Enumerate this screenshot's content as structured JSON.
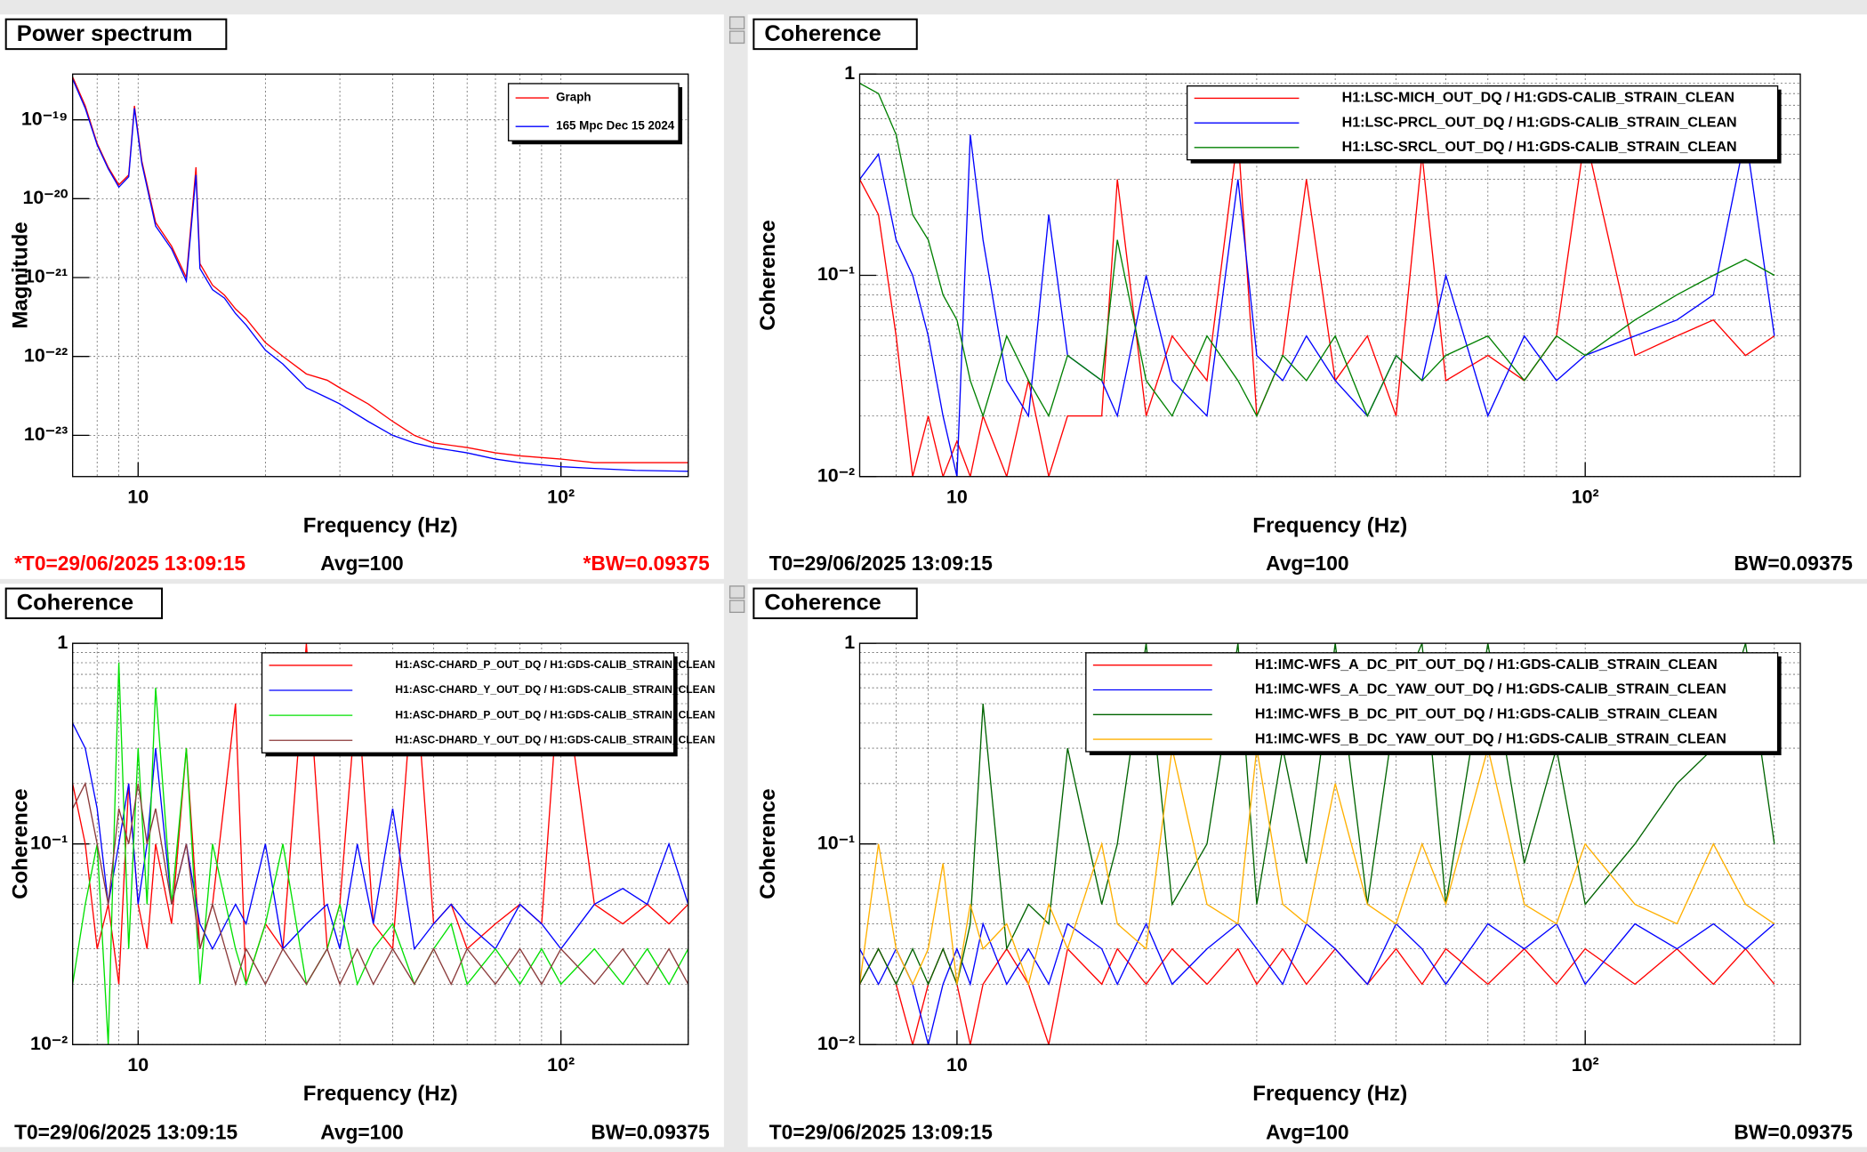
{
  "chart_data": [
    {
      "type": "line",
      "title": "Power spectrum",
      "xlabel": "Frequency (Hz)",
      "ylabel": "Magnitude",
      "log_x": true,
      "log_y": true,
      "grid": true,
      "xlim": [
        7,
        200
      ],
      "ylim": [
        3e-24,
        3.8e-19
      ],
      "xticks": [
        10,
        {
          "value": 100,
          "label": "10²"
        }
      ],
      "xminorticks": [
        7,
        8,
        9,
        20,
        30,
        40,
        50,
        60,
        70,
        80,
        90,
        200
      ],
      "yticks": [
        {
          "value": 1e-23,
          "label": "10⁻²³"
        },
        {
          "value": 1e-22,
          "label": "10⁻²²"
        },
        {
          "value": 1e-21,
          "label": "10⁻²¹"
        },
        {
          "value": 1e-20,
          "label": "10⁻²⁰"
        },
        {
          "value": 1e-19,
          "label": "10⁻¹⁹"
        }
      ],
      "yminorticks": [],
      "x": [
        7,
        7.5,
        8,
        8.5,
        9,
        9.5,
        9.8,
        10.2,
        11,
        12,
        13,
        13.7,
        14,
        15,
        16,
        17,
        18,
        20,
        22,
        25,
        28,
        30,
        35,
        40,
        45,
        50,
        60,
        70,
        80,
        100,
        120,
        150,
        200
      ],
      "series": [
        {
          "name": "Graph",
          "color": "#ff0000",
          "values": [
            3.5e-19,
            1.5e-19,
            5e-20,
            2.5e-20,
            1.5e-20,
            2e-20,
            1.5e-19,
            3e-20,
            5e-21,
            2.5e-21,
            1e-21,
            2.5e-20,
            1.5e-21,
            8e-22,
            6e-22,
            4e-22,
            3e-22,
            1.5e-22,
            1e-22,
            6e-23,
            5e-23,
            4e-23,
            2.5e-23,
            1.5e-23,
            1e-23,
            8e-24,
            7e-24,
            6e-24,
            5.5e-24,
            5e-24,
            4.5e-24,
            4.5e-24,
            4.5e-24
          ]
        },
        {
          "name": "165 Mpc Dec 15 2024",
          "color": "#0000ff",
          "values": [
            3.3e-19,
            1.4e-19,
            4.8e-20,
            2.4e-20,
            1.4e-20,
            1.9e-20,
            1.4e-19,
            2.8e-20,
            4.5e-21,
            2.3e-21,
            9e-22,
            2e-20,
            1.3e-21,
            7e-22,
            5.5e-22,
            3.5e-22,
            2.5e-22,
            1.2e-22,
            8e-23,
            4e-23,
            3e-23,
            2.5e-23,
            1.5e-23,
            1e-23,
            8e-24,
            7e-24,
            6e-24,
            5e-24,
            4.5e-24,
            4e-24,
            3.8e-24,
            3.6e-24,
            3.5e-24
          ]
        }
      ],
      "footer": {
        "t0": "*T0=29/06/2025 13:09:15",
        "avg": "Avg=100",
        "bw": "*BW=0.09375"
      },
      "footer_color": "#ff0000"
    },
    {
      "type": "line",
      "title": "Coherence",
      "xlabel": "Frequency (Hz)",
      "ylabel": "Coherence",
      "log_x": true,
      "log_y": true,
      "grid": true,
      "xlim": [
        7,
        220
      ],
      "ylim": [
        0.01,
        1
      ],
      "xticks": [
        10,
        {
          "value": 100,
          "label": "10²"
        }
      ],
      "xminorticks": [
        7,
        8,
        9,
        20,
        30,
        40,
        50,
        60,
        70,
        80,
        90,
        200
      ],
      "yticks": [
        {
          "value": 0.01,
          "label": "10⁻²"
        },
        {
          "value": 0.1,
          "label": "10⁻¹"
        },
        1
      ],
      "yminorticks": [
        0.02,
        0.03,
        0.04,
        0.05,
        0.06,
        0.07,
        0.08,
        0.09,
        0.2,
        0.3,
        0.4,
        0.5,
        0.6,
        0.7,
        0.8,
        0.9
      ],
      "x": [
        7,
        7.5,
        8,
        8.5,
        9,
        9.5,
        10,
        10.5,
        11,
        12,
        13,
        14,
        15,
        17,
        18,
        20,
        22,
        25,
        28,
        30,
        33,
        36,
        40,
        45,
        50,
        55,
        60,
        70,
        80,
        90,
        100,
        120,
        140,
        160,
        180,
        200
      ],
      "series": [
        {
          "name": "H1:LSC-MICH_OUT_DQ / H1:GDS-CALIB_STRAIN_CLEAN",
          "color": "#ff0000",
          "values": [
            0.3,
            0.2,
            0.05,
            0.01,
            0.02,
            0.01,
            0.015,
            0.01,
            0.02,
            0.01,
            0.03,
            0.01,
            0.02,
            0.02,
            0.3,
            0.02,
            0.05,
            0.03,
            0.5,
            0.02,
            0.04,
            0.3,
            0.03,
            0.05,
            0.02,
            0.4,
            0.03,
            0.04,
            0.03,
            0.05,
            0.5,
            0.04,
            0.05,
            0.06,
            0.04,
            0.05
          ]
        },
        {
          "name": "H1:LSC-PRCL_OUT_DQ / H1:GDS-CALIB_STRAIN_CLEAN",
          "color": "#0000ff",
          "values": [
            0.3,
            0.4,
            0.15,
            0.1,
            0.05,
            0.02,
            0.01,
            0.5,
            0.15,
            0.03,
            0.02,
            0.2,
            0.04,
            0.03,
            0.02,
            0.1,
            0.03,
            0.02,
            0.3,
            0.04,
            0.03,
            0.05,
            0.03,
            0.02,
            0.04,
            0.03,
            0.1,
            0.02,
            0.05,
            0.03,
            0.04,
            0.05,
            0.06,
            0.08,
            0.5,
            0.05
          ]
        },
        {
          "name": "H1:LSC-SRCL_OUT_DQ / H1:GDS-CALIB_STRAIN_CLEAN",
          "color": "#008000",
          "values": [
            0.9,
            0.8,
            0.5,
            0.2,
            0.15,
            0.08,
            0.06,
            0.03,
            0.02,
            0.05,
            0.03,
            0.02,
            0.04,
            0.03,
            0.15,
            0.03,
            0.02,
            0.05,
            0.03,
            0.02,
            0.04,
            0.03,
            0.05,
            0.02,
            0.04,
            0.03,
            0.04,
            0.05,
            0.03,
            0.05,
            0.04,
            0.06,
            0.08,
            0.1,
            0.12,
            0.1
          ]
        }
      ],
      "footer": {
        "t0": "T0=29/06/2025 13:09:15",
        "avg": "Avg=100",
        "bw": "BW=0.09375"
      },
      "footer_color": "#000000"
    },
    {
      "type": "line",
      "title": "Coherence",
      "xlabel": "Frequency (Hz)",
      "ylabel": "Coherence",
      "log_x": true,
      "log_y": true,
      "grid": true,
      "xlim": [
        7,
        200
      ],
      "ylim": [
        0.01,
        1
      ],
      "xticks": [
        10,
        {
          "value": 100,
          "label": "10²"
        }
      ],
      "xminorticks": [
        7,
        8,
        9,
        20,
        30,
        40,
        50,
        60,
        70,
        80,
        90,
        200
      ],
      "yticks": [
        {
          "value": 0.01,
          "label": "10⁻²"
        },
        {
          "value": 0.1,
          "label": "10⁻¹"
        },
        1
      ],
      "yminorticks": [
        0.02,
        0.03,
        0.04,
        0.05,
        0.06,
        0.07,
        0.08,
        0.09,
        0.2,
        0.3,
        0.4,
        0.5,
        0.6,
        0.7,
        0.8,
        0.9
      ],
      "x": [
        7,
        7.5,
        8,
        8.5,
        9,
        9.5,
        10,
        10.5,
        11,
        12,
        13,
        14,
        15,
        17,
        18,
        20,
        22,
        25,
        28,
        30,
        33,
        36,
        40,
        45,
        50,
        55,
        60,
        70,
        80,
        90,
        100,
        120,
        140,
        160,
        180,
        200
      ],
      "series": [
        {
          "name": "H1:ASC-CHARD_P_OUT_DQ / H1:GDS-CALIB_STRAIN_CLEAN",
          "color": "#ff0000",
          "values": [
            0.2,
            0.1,
            0.03,
            0.05,
            0.02,
            0.2,
            0.05,
            0.03,
            0.1,
            0.04,
            0.3,
            0.03,
            0.05,
            0.5,
            0.02,
            0.04,
            0.03,
            1,
            0.03,
            0.05,
            0.6,
            0.04,
            0.03,
            0.8,
            0.04,
            0.05,
            0.03,
            0.04,
            0.05,
            0.04,
            0.9,
            0.05,
            0.04,
            0.05,
            0.04,
            0.05
          ]
        },
        {
          "name": "H1:ASC-CHARD_Y_OUT_DQ / H1:GDS-CALIB_STRAIN_CLEAN",
          "color": "#0000ff",
          "values": [
            0.4,
            0.3,
            0.15,
            0.05,
            0.1,
            0.2,
            0.05,
            0.1,
            0.3,
            0.05,
            0.1,
            0.04,
            0.03,
            0.05,
            0.04,
            0.1,
            0.03,
            0.04,
            0.05,
            0.03,
            0.1,
            0.04,
            0.15,
            0.03,
            0.04,
            0.05,
            0.04,
            0.03,
            0.05,
            0.04,
            0.03,
            0.05,
            0.06,
            0.05,
            0.1,
            0.05
          ]
        },
        {
          "name": "H1:ASC-DHARD_P_OUT_DQ / H1:GDS-CALIB_STRAIN_CLEAN",
          "color": "#00e000",
          "values": [
            0.02,
            0.05,
            0.1,
            0.01,
            0.8,
            0.03,
            0.3,
            0.05,
            0.6,
            0.05,
            0.3,
            0.02,
            0.1,
            0.03,
            0.02,
            0.04,
            0.1,
            0.02,
            0.03,
            0.05,
            0.02,
            0.03,
            0.04,
            0.02,
            0.03,
            0.04,
            0.02,
            0.03,
            0.02,
            0.03,
            0.02,
            0.03,
            0.02,
            0.03,
            0.02,
            0.03
          ]
        },
        {
          "name": "H1:ASC-DHARD_Y_OUT_DQ / H1:GDS-CALIB_STRAIN_CLEAN",
          "color": "#8b3a3a",
          "values": [
            0.15,
            0.2,
            0.1,
            0.05,
            0.15,
            0.1,
            0.2,
            0.1,
            0.15,
            0.05,
            0.1,
            0.03,
            0.05,
            0.02,
            0.03,
            0.02,
            0.03,
            0.02,
            0.03,
            0.02,
            0.03,
            0.02,
            0.03,
            0.02,
            0.03,
            0.02,
            0.03,
            0.02,
            0.03,
            0.02,
            0.03,
            0.02,
            0.03,
            0.02,
            0.03,
            0.02
          ]
        }
      ],
      "footer": {
        "t0": "T0=29/06/2025 13:09:15",
        "avg": "Avg=100",
        "bw": "BW=0.09375"
      },
      "footer_color": "#000000"
    },
    {
      "type": "line",
      "title": "Coherence",
      "xlabel": "Frequency (Hz)",
      "ylabel": "Coherence",
      "log_x": true,
      "log_y": true,
      "grid": true,
      "xlim": [
        7,
        220
      ],
      "ylim": [
        0.01,
        1
      ],
      "xticks": [
        10,
        {
          "value": 100,
          "label": "10²"
        }
      ],
      "xminorticks": [
        7,
        8,
        9,
        20,
        30,
        40,
        50,
        60,
        70,
        80,
        90,
        200
      ],
      "yticks": [
        {
          "value": 0.01,
          "label": "10⁻²"
        },
        {
          "value": 0.1,
          "label": "10⁻¹"
        },
        1
      ],
      "yminorticks": [
        0.02,
        0.03,
        0.04,
        0.05,
        0.06,
        0.07,
        0.08,
        0.09,
        0.2,
        0.3,
        0.4,
        0.5,
        0.6,
        0.7,
        0.8,
        0.9
      ],
      "x": [
        7,
        7.5,
        8,
        8.5,
        9,
        9.5,
        10,
        10.5,
        11,
        12,
        13,
        14,
        15,
        17,
        18,
        20,
        22,
        25,
        28,
        30,
        33,
        36,
        40,
        45,
        50,
        55,
        60,
        70,
        80,
        90,
        100,
        120,
        140,
        160,
        180,
        200
      ],
      "series": [
        {
          "name": "H1:IMC-WFS_A_DC_PIT_OUT_DQ / H1:GDS-CALIB_STRAIN_CLEAN",
          "color": "#ff0000",
          "values": [
            0.02,
            0.03,
            0.02,
            0.01,
            0.02,
            0.03,
            0.02,
            0.01,
            0.02,
            0.03,
            0.02,
            0.01,
            0.03,
            0.02,
            0.03,
            0.02,
            0.03,
            0.02,
            0.03,
            0.02,
            0.03,
            0.02,
            0.03,
            0.02,
            0.03,
            0.02,
            0.03,
            0.02,
            0.03,
            0.02,
            0.03,
            0.02,
            0.03,
            0.02,
            0.03,
            0.02
          ]
        },
        {
          "name": "H1:IMC-WFS_A_DC_YAW_OUT_DQ / H1:GDS-CALIB_STRAIN_CLEAN",
          "color": "#0000ff",
          "values": [
            0.03,
            0.02,
            0.03,
            0.02,
            0.01,
            0.02,
            0.03,
            0.02,
            0.04,
            0.02,
            0.03,
            0.02,
            0.04,
            0.03,
            0.02,
            0.04,
            0.02,
            0.03,
            0.04,
            0.03,
            0.02,
            0.04,
            0.03,
            0.02,
            0.04,
            0.03,
            0.02,
            0.04,
            0.03,
            0.04,
            0.02,
            0.04,
            0.03,
            0.04,
            0.03,
            0.04
          ]
        },
        {
          "name": "H1:IMC-WFS_B_DC_PIT_OUT_DQ / H1:GDS-CALIB_STRAIN_CLEAN",
          "color": "#006400",
          "values": [
            0.02,
            0.03,
            0.02,
            0.03,
            0.02,
            0.03,
            0.02,
            0.04,
            0.5,
            0.03,
            0.05,
            0.04,
            0.3,
            0.05,
            0.1,
            1,
            0.05,
            0.1,
            1,
            0.05,
            0.3,
            0.08,
            1,
            0.05,
            0.5,
            1,
            0.05,
            1,
            0.08,
            0.3,
            0.05,
            0.1,
            0.2,
            0.3,
            1,
            0.1
          ]
        },
        {
          "name": "H1:IMC-WFS_B_DC_YAW_OUT_DQ / H1:GDS-CALIB_STRAIN_CLEAN",
          "color": "#ffb000",
          "values": [
            0.02,
            0.1,
            0.03,
            0.02,
            0.03,
            0.08,
            0.02,
            0.05,
            0.03,
            0.04,
            0.02,
            0.05,
            0.03,
            0.1,
            0.04,
            0.03,
            0.3,
            0.05,
            0.04,
            0.3,
            0.05,
            0.04,
            0.2,
            0.05,
            0.04,
            0.1,
            0.05,
            0.3,
            0.05,
            0.04,
            0.1,
            0.05,
            0.04,
            0.1,
            0.05,
            0.04
          ]
        }
      ],
      "footer": {
        "t0": "T0=29/06/2025 13:09:15",
        "avg": "Avg=100",
        "bw": "BW=0.09375"
      },
      "footer_color": "#000000"
    }
  ]
}
